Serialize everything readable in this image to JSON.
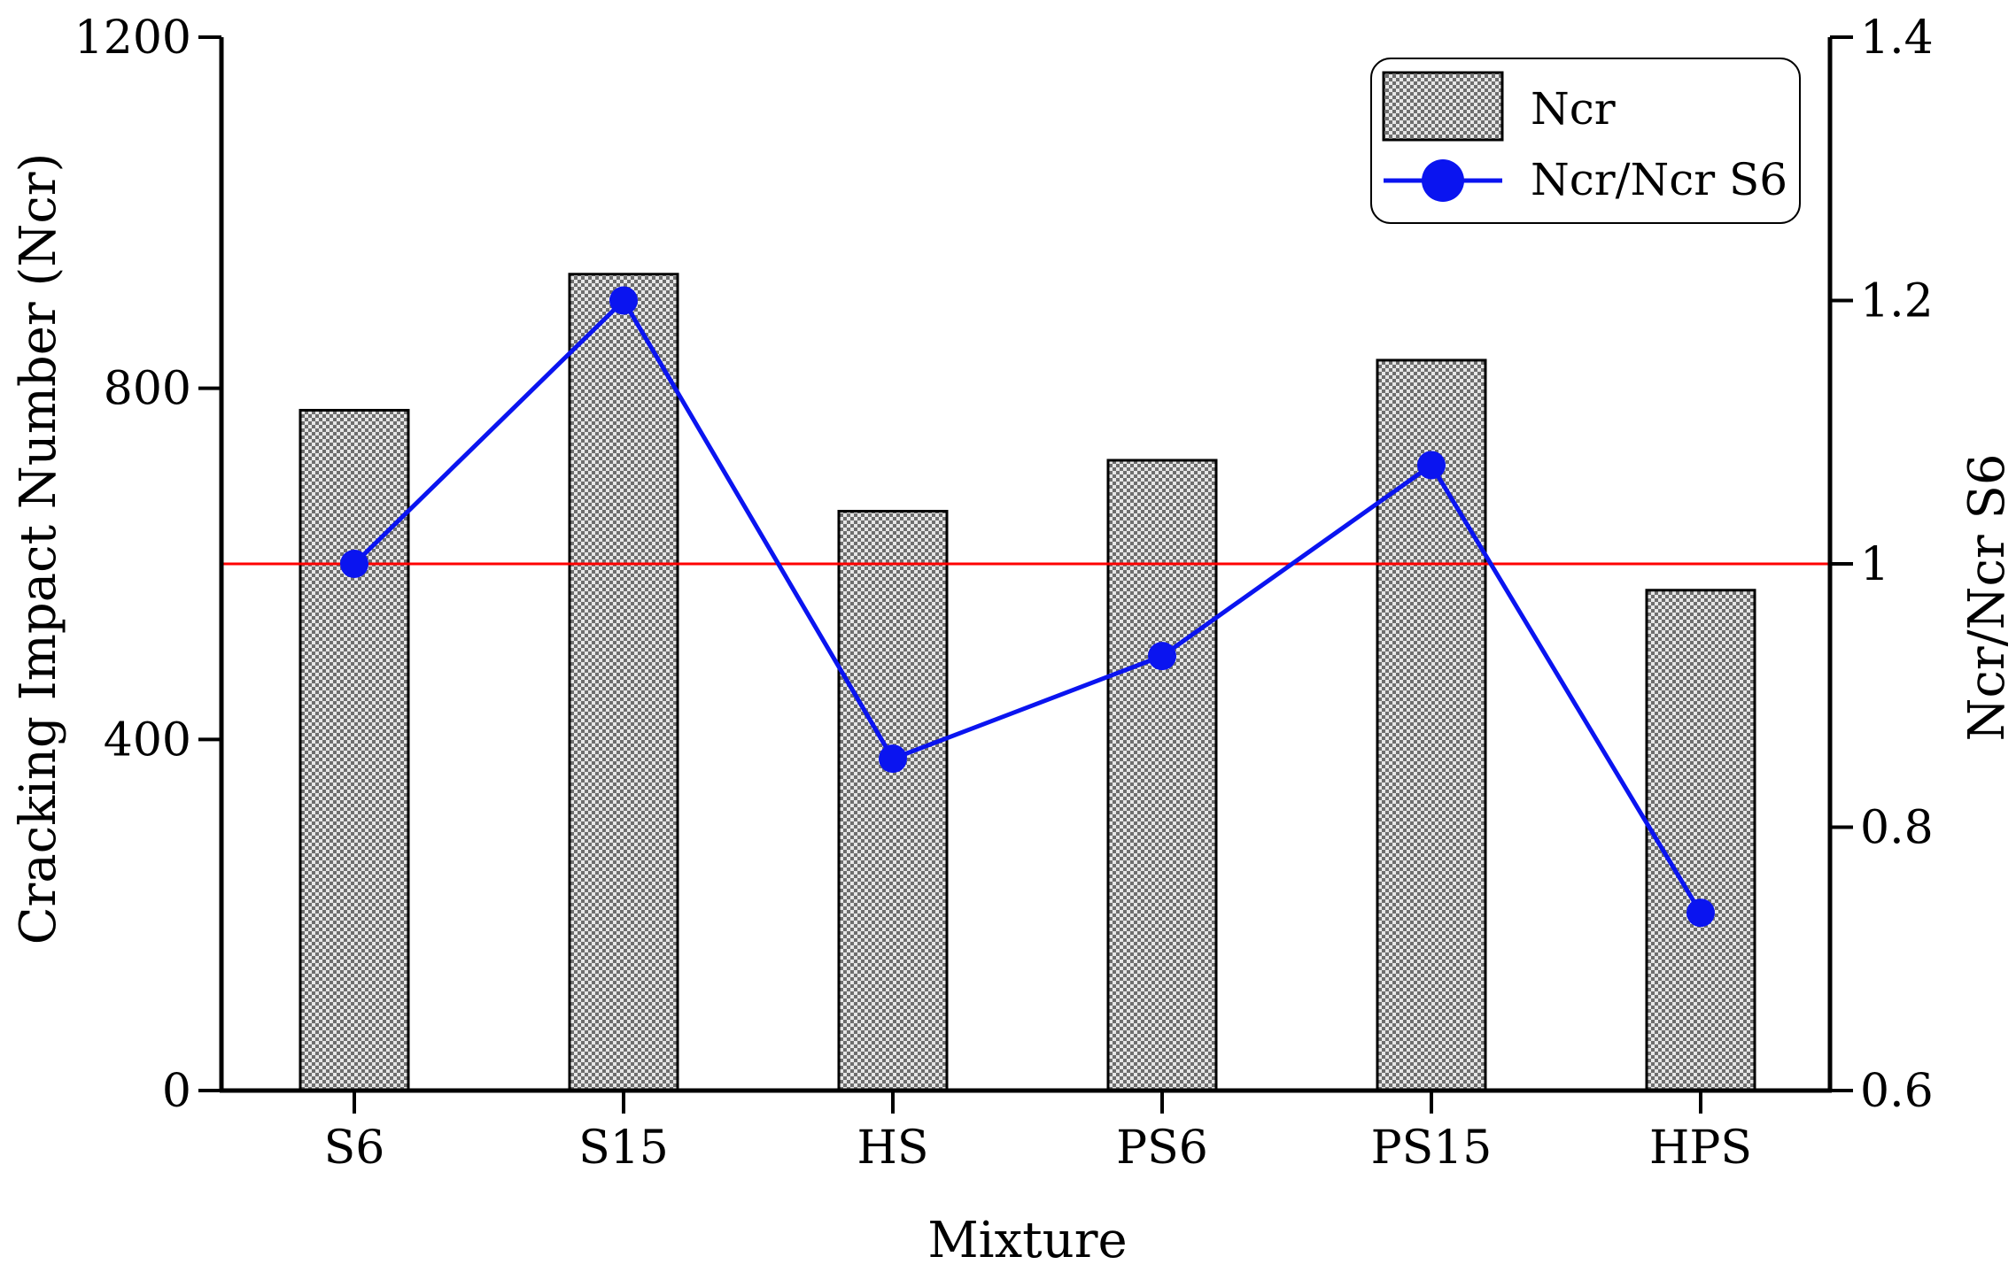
{
  "chart_data": {
    "type": "bar",
    "categories": [
      "S6",
      "S15",
      "HS",
      "PS6",
      "PS15",
      "HPS"
    ],
    "series": [
      {
        "name": "Ncr",
        "type": "bar",
        "axis": "left",
        "values": [
          775,
          930,
          660,
          718,
          832,
          570
        ]
      },
      {
        "name": "Ncr/Ncr S6",
        "type": "line",
        "axis": "right",
        "values": [
          1.0,
          1.2,
          0.852,
          0.93,
          1.075,
          0.735
        ],
        "color": "#0a14f0"
      }
    ],
    "xlabel": "Mixture",
    "ylabel": "Cracking Impact Number (Ncr)",
    "y2label": "Ncr/Ncr S6",
    "ylim": [
      0,
      1200
    ],
    "y2lim": [
      0.6,
      1.4
    ],
    "yticks": [
      "0",
      "400",
      "800",
      "1200"
    ],
    "y2ticks": [
      "0.6",
      "0.8",
      "1",
      "1.2",
      "1.4"
    ],
    "reference_line": {
      "axis": "right",
      "value": 1.0,
      "color": "#ff0000"
    },
    "grid": false,
    "legend_position": "top-right",
    "bar_fill": "gray checkered pattern"
  }
}
